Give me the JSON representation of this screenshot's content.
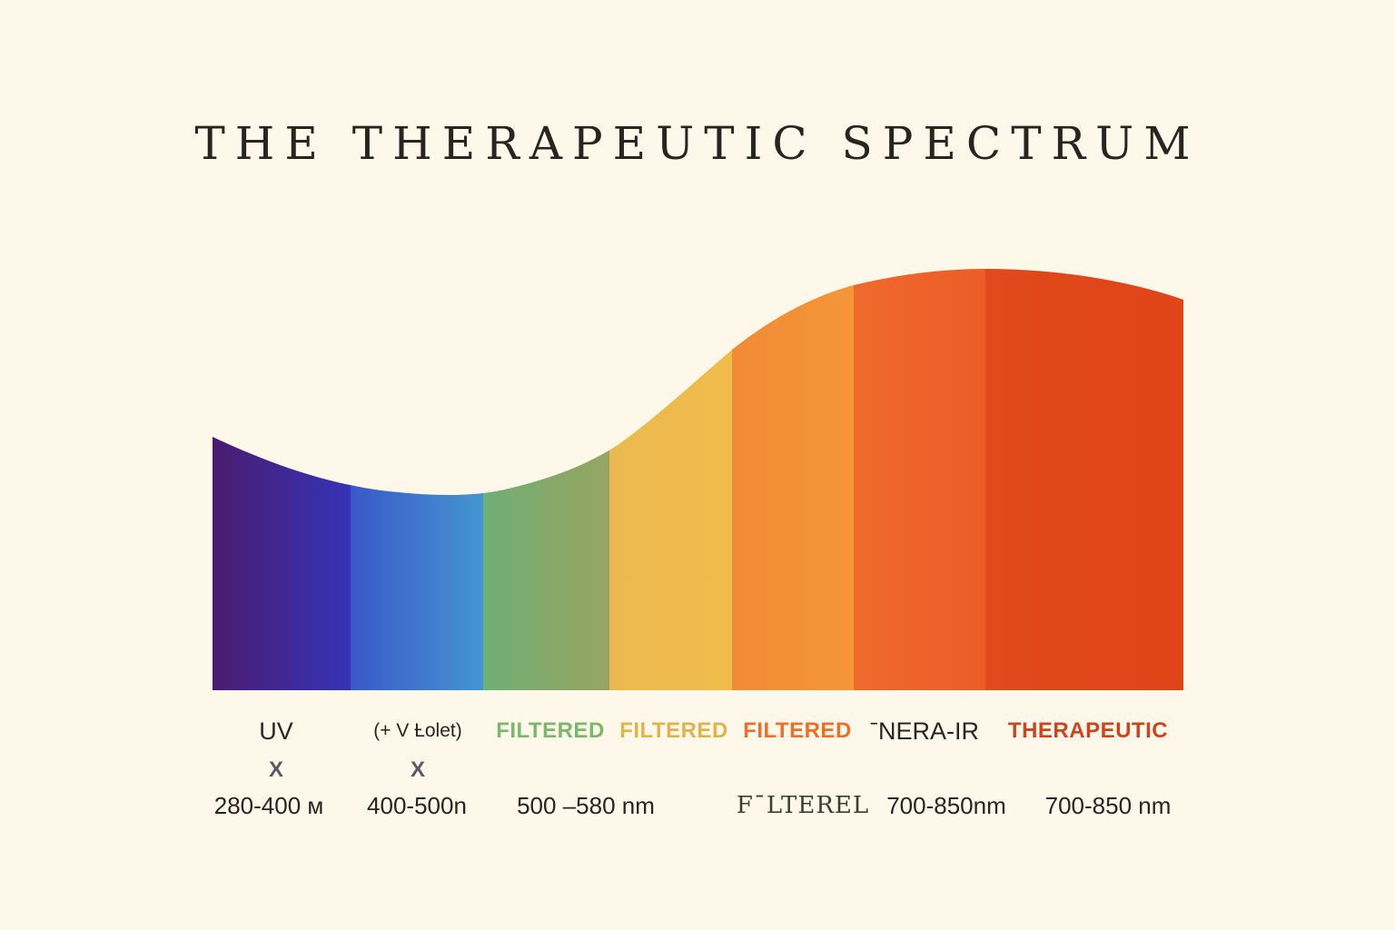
{
  "title": "THE THERAPEUTIC SPECTRUM",
  "bands": [
    {
      "label": "UV",
      "x_mark": "X",
      "range": "280-400 м",
      "color_start": "#4a1c6e",
      "color_end": "#3633b8",
      "label_color": "#2a2420"
    },
    {
      "label": "(+ V Ƚolet)",
      "x_mark": "X",
      "range": "400-500n",
      "color_start": "#3a58c8",
      "color_end": "#4596d0",
      "label_color": "#2a2420"
    },
    {
      "label": "FILTERED",
      "x_mark": "",
      "range": "500 –580 nm",
      "color_start": "#6fae74",
      "color_end": "#98a462",
      "label_color": "#7db86a"
    },
    {
      "label": "FILTERED",
      "x_mark": "",
      "range": "",
      "color_start": "#ebb950",
      "color_end": "#f1bc4c",
      "label_color": "#e0b34d"
    },
    {
      "label": "FILTERED",
      "x_mark": "",
      "range": "FˉLTEREL",
      "color_start": "#f18a35",
      "color_end": "#f59638",
      "label_color": "#ee6f2a"
    },
    {
      "label": "ˉNERA-IR",
      "x_mark": "",
      "range": "700-850nm",
      "color_start": "#ee6a2c",
      "color_end": "#ec5c28",
      "label_color": "#2a2420"
    },
    {
      "label": "THERAPEUTIC",
      "x_mark": "",
      "range": "700-850 nm",
      "color_start": "#e04a1c",
      "color_end": "#e04418",
      "label_color": "#c9461f"
    }
  ]
}
